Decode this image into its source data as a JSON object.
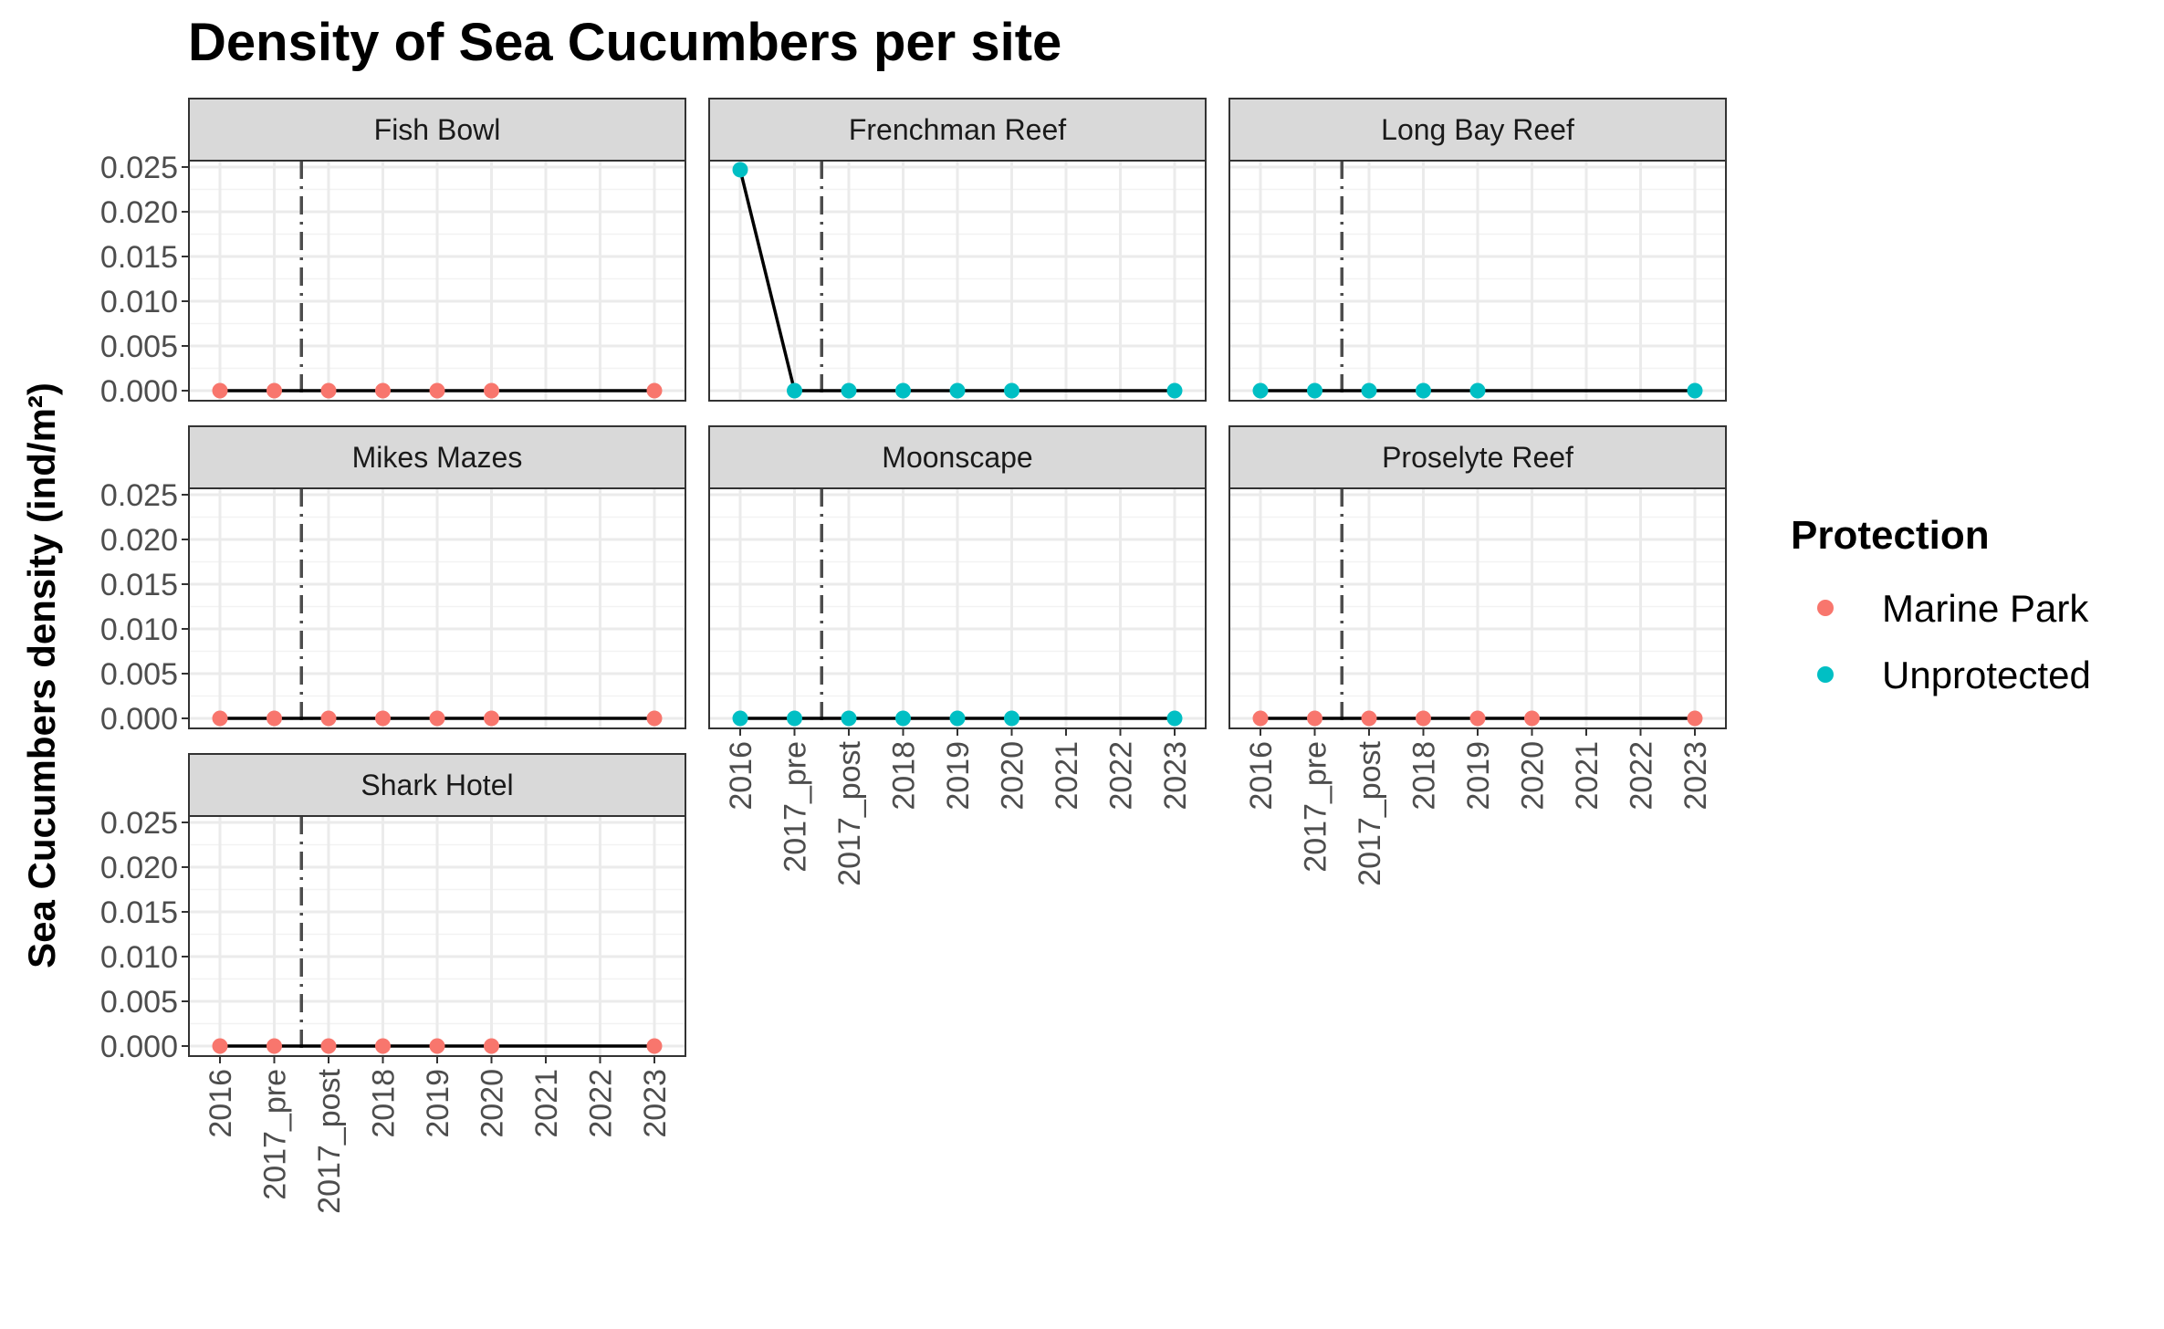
{
  "title": "Density of Sea Cucumbers per site",
  "ylabel": "Sea Cucumbers density (ind/m²)",
  "legend": {
    "title": "Protection",
    "items": [
      {
        "label": "Marine Park",
        "color": "#F8766D"
      },
      {
        "label": "Unprotected",
        "color": "#00BFC4"
      }
    ]
  },
  "chart_data": {
    "type": "line",
    "layout": "facet_wrap",
    "x_categories": [
      "2016",
      "2017_pre",
      "2017_post",
      "2018",
      "2019",
      "2020",
      "2021",
      "2022",
      "2023"
    ],
    "y_ticks": [
      "0.000",
      "0.005",
      "0.010",
      "0.015",
      "0.020",
      "0.025"
    ],
    "ylim": [
      0,
      0.025
    ],
    "reference_line": {
      "between": [
        "2017_pre",
        "2017_post"
      ],
      "style": "dashdot"
    },
    "grid": true,
    "legend_position": "right",
    "panels": [
      {
        "site": "Fish Bowl",
        "protection": "Marine Park",
        "x": [
          "2016",
          "2017_pre",
          "2017_post",
          "2018",
          "2019",
          "2020",
          "2023"
        ],
        "y": [
          0,
          0,
          0,
          0,
          0,
          0,
          0
        ]
      },
      {
        "site": "Frenchman Reef",
        "protection": "Unprotected",
        "x": [
          "2016",
          "2017_pre",
          "2017_post",
          "2018",
          "2019",
          "2020",
          "2023"
        ],
        "y": [
          0.0247,
          0,
          0,
          0,
          0,
          0,
          0
        ]
      },
      {
        "site": "Long Bay Reef",
        "protection": "Unprotected",
        "x": [
          "2016",
          "2017_pre",
          "2017_post",
          "2018",
          "2019",
          "2023"
        ],
        "y": [
          0,
          0,
          0,
          0,
          0,
          0
        ]
      },
      {
        "site": "Mikes Mazes",
        "protection": "Marine Park",
        "x": [
          "2016",
          "2017_pre",
          "2017_post",
          "2018",
          "2019",
          "2020",
          "2023"
        ],
        "y": [
          0,
          0,
          0,
          0,
          0,
          0,
          0
        ]
      },
      {
        "site": "Moonscape",
        "protection": "Unprotected",
        "x": [
          "2016",
          "2017_pre",
          "2017_post",
          "2018",
          "2019",
          "2020",
          "2023"
        ],
        "y": [
          0,
          0,
          0,
          0,
          0,
          0,
          0
        ]
      },
      {
        "site": "Proselyte Reef",
        "protection": "Marine Park",
        "x": [
          "2016",
          "2017_pre",
          "2017_post",
          "2018",
          "2019",
          "2020",
          "2023"
        ],
        "y": [
          0,
          0,
          0,
          0,
          0,
          0,
          0
        ]
      },
      {
        "site": "Shark Hotel",
        "protection": "Marine Park",
        "x": [
          "2016",
          "2017_pre",
          "2017_post",
          "2018",
          "2019",
          "2020",
          "2023"
        ],
        "y": [
          0,
          0,
          0,
          0,
          0,
          0,
          0
        ]
      }
    ]
  }
}
